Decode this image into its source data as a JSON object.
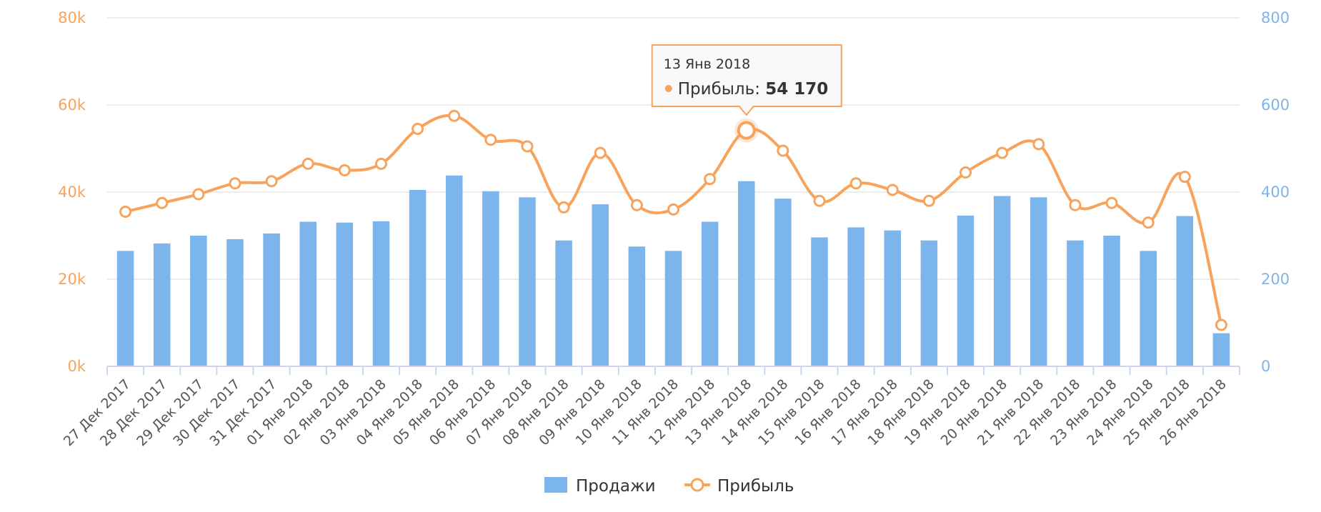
{
  "chart_data": {
    "type": "bar",
    "categories": [
      "27 Дек 2017",
      "28 Дек 2017",
      "29 Дек 2017",
      "30 Дек 2017",
      "31 Дек 2017",
      "01 Янв 2018",
      "02 Янв 2018",
      "03 Янв 2018",
      "04 Янв 2018",
      "05 Янв 2018",
      "06 Янв 2018",
      "07 Янв 2018",
      "08 Янв 2018",
      "09 Янв 2018",
      "10 Янв 2018",
      "11 Янв 2018",
      "12 Янв 2018",
      "13 Янв 2018",
      "14 Янв 2018",
      "15 Янв 2018",
      "16 Янв 2018",
      "17 Янв 2018",
      "18 Янв 2018",
      "19 Янв 2018",
      "20 Янв 2018",
      "21 Янв 2018",
      "22 Янв 2018",
      "23 Янв 2018",
      "24 Янв 2018",
      "25 Янв 2018",
      "26 Янв 2018"
    ],
    "series": [
      {
        "name": "Продажи",
        "type": "bar",
        "axis": "right",
        "color": "#7cb5ec",
        "values": [
          265,
          282,
          300,
          292,
          305,
          332,
          330,
          333,
          405,
          438,
          402,
          388,
          289,
          372,
          275,
          265,
          332,
          425,
          385,
          296,
          319,
          312,
          289,
          346,
          391,
          388,
          289,
          300,
          265,
          345,
          76
        ]
      },
      {
        "name": "Прибыль",
        "type": "line",
        "axis": "left",
        "color": "#f7a35c",
        "values": [
          35500,
          37500,
          39500,
          42000,
          42500,
          46500,
          45000,
          46500,
          54500,
          57500,
          52000,
          50500,
          36500,
          49000,
          37000,
          36000,
          43000,
          54170,
          49500,
          38000,
          42000,
          40500,
          38000,
          44500,
          49000,
          51000,
          37000,
          37500,
          33000,
          43500,
          9500
        ]
      }
    ],
    "yaxis_left": {
      "ticks": [
        "0k",
        "20k",
        "40k",
        "60k",
        "80k"
      ],
      "range": [
        0,
        80000
      ]
    },
    "yaxis_right": {
      "ticks": [
        "0",
        "200",
        "400",
        "600",
        "800"
      ],
      "range": [
        0,
        800
      ]
    },
    "grid": true,
    "legend": {
      "position": "bottom-center",
      "items": [
        "Продажи",
        "Прибыль"
      ]
    },
    "tooltip": {
      "date": "13 Янв 2018",
      "label": "Прибыль:",
      "value": "54 170",
      "index": 17
    }
  }
}
